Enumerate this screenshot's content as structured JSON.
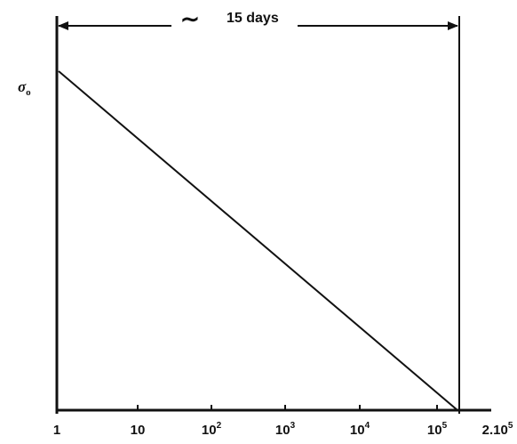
{
  "chart_data": {
    "type": "line",
    "x_scale": "log",
    "x": [
      1,
      200000
    ],
    "y_label": "σ₀",
    "y_label_symbol": "σ",
    "y_label_subscript": "o",
    "ticks": [
      {
        "value": 1,
        "base": "1",
        "exp": ""
      },
      {
        "value": 10,
        "base": "10",
        "exp": ""
      },
      {
        "value": 100,
        "base": "10",
        "exp": "2"
      },
      {
        "value": 1000,
        "base": "10",
        "exp": "3"
      },
      {
        "value": 10000,
        "base": "10",
        "exp": "4"
      },
      {
        "value": 100000,
        "base": "10",
        "exp": "5"
      },
      {
        "value": 200000,
        "base": "2.10",
        "exp": "5"
      }
    ],
    "series": [
      {
        "points": [
          [
            1,
            1.0
          ],
          [
            200000,
            0.0
          ]
        ]
      }
    ],
    "annotation": {
      "text": "∼ 15 days",
      "tilde": "∼",
      "label": "15 days",
      "from": 1,
      "to": 200000
    },
    "grid": false,
    "colors": {
      "line": "#111111",
      "background": "#ffffff"
    }
  }
}
